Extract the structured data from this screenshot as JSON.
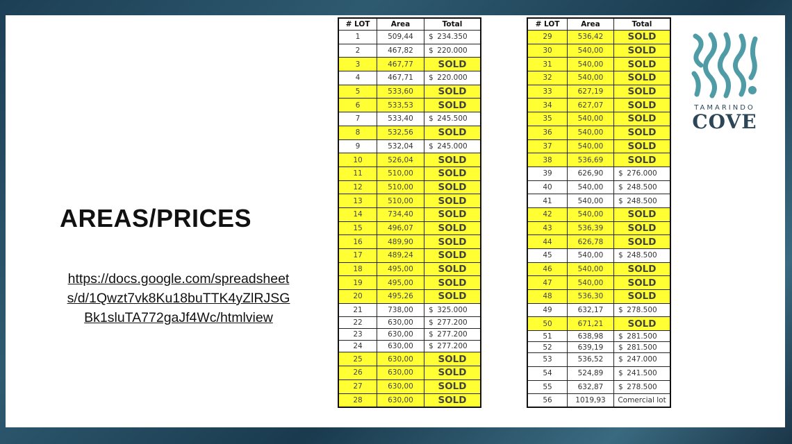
{
  "slide": {
    "title": "AREAS/PRICES",
    "link": "https://docs.google.com/spreadsheets/d/1Qwzt7vk8Ku18buTTK4yZlRJSGBk1sluTA772gaJf4Wc/htmlview"
  },
  "logo": {
    "line1": "TAMARINDO",
    "line2": "COVE",
    "color": "#4f9ca6"
  },
  "table": {
    "headers": [
      "# LOT",
      "Area",
      "Total"
    ],
    "sold_label": "SOLD",
    "currency": "$",
    "colors": {
      "sold_row": "#ffff33",
      "sold_text": "#d0380a"
    },
    "left_rows": [
      {
        "lot": "1",
        "area": "509,44",
        "total": "234.350"
      },
      {
        "lot": "2",
        "area": "467,82",
        "total": "220.000"
      },
      {
        "lot": "3",
        "area": "467,77",
        "sold": true
      },
      {
        "lot": "4",
        "area": "467,71",
        "total": "220.000"
      },
      {
        "lot": "5",
        "area": "533,60",
        "sold": true
      },
      {
        "lot": "6",
        "area": "533,53",
        "sold": true
      },
      {
        "lot": "7",
        "area": "533,40",
        "total": "245.500"
      },
      {
        "lot": "8",
        "area": "532,56",
        "sold": true
      },
      {
        "lot": "9",
        "area": "532,04",
        "total": "245.000"
      },
      {
        "lot": "10",
        "area": "526,04",
        "sold": true
      },
      {
        "lot": "11",
        "area": "510,00",
        "sold": true
      },
      {
        "lot": "12",
        "area": "510,00",
        "sold": true
      },
      {
        "lot": "13",
        "area": "510,00",
        "sold": true
      },
      {
        "lot": "14",
        "area": "734,40",
        "sold": true
      },
      {
        "lot": "15",
        "area": "496,07",
        "sold": true
      },
      {
        "lot": "16",
        "area": "489,90",
        "sold": true
      },
      {
        "lot": "17",
        "area": "489,24",
        "sold": true
      },
      {
        "lot": "18",
        "area": "495,00",
        "sold": true
      },
      {
        "lot": "19",
        "area": "495,00",
        "sold": true
      },
      {
        "lot": "20",
        "area": "495,26",
        "sold": true
      },
      {
        "lot": "21",
        "area": "738,00",
        "total": "325.000"
      },
      {
        "lot": "22",
        "area": "630,00",
        "total": "277.200"
      },
      {
        "lot": "23",
        "area": "630,00",
        "total": "277.200"
      },
      {
        "lot": "24",
        "area": "630,00",
        "total": "277.200"
      },
      {
        "lot": "25",
        "area": "630,00",
        "sold": true
      },
      {
        "lot": "26",
        "area": "630,00",
        "sold": true
      },
      {
        "lot": "27",
        "area": "630,00",
        "sold": true
      },
      {
        "lot": "28",
        "area": "630,00",
        "sold": true
      }
    ],
    "right_rows": [
      {
        "lot": "29",
        "area": "536,42",
        "sold": true
      },
      {
        "lot": "30",
        "area": "540,00",
        "sold": true
      },
      {
        "lot": "31",
        "area": "540,00",
        "sold": true
      },
      {
        "lot": "32",
        "area": "540,00",
        "sold": true
      },
      {
        "lot": "33",
        "area": "627,19",
        "sold": true
      },
      {
        "lot": "34",
        "area": "627,07",
        "sold": true
      },
      {
        "lot": "35",
        "area": "540,00",
        "sold": true
      },
      {
        "lot": "36",
        "area": "540,00",
        "sold": true
      },
      {
        "lot": "37",
        "area": "540,00",
        "sold": true
      },
      {
        "lot": "38",
        "area": "536,69",
        "sold": true
      },
      {
        "lot": "39",
        "area": "626,90",
        "total": "276.000"
      },
      {
        "lot": "40",
        "area": "540,00",
        "total": "248.500"
      },
      {
        "lot": "41",
        "area": "540,00",
        "total": "248.500"
      },
      {
        "lot": "42",
        "area": "540,00",
        "sold": true
      },
      {
        "lot": "43",
        "area": "536,39",
        "sold": true
      },
      {
        "lot": "44",
        "area": "626,78",
        "sold": true
      },
      {
        "lot": "45",
        "area": "540,00",
        "total": "248.500"
      },
      {
        "lot": "46",
        "area": "540,00",
        "sold": true
      },
      {
        "lot": "47",
        "area": "540,00",
        "sold": true
      },
      {
        "lot": "48",
        "area": "536,30",
        "sold": true
      },
      {
        "lot": "49",
        "area": "632,17",
        "total": "278.500"
      },
      {
        "lot": "50",
        "area": "671,21",
        "sold": true
      },
      {
        "lot": "51",
        "area": "638,98",
        "total": "281.500"
      },
      {
        "lot": "52",
        "area": "639,19",
        "total": "281.500"
      },
      {
        "lot": "53",
        "area": "536,52",
        "total": "247.000"
      },
      {
        "lot": "54",
        "area": "524,89",
        "total": "241.500"
      },
      {
        "lot": "55",
        "area": "632,87",
        "total": "278.500"
      },
      {
        "lot": "56",
        "area": "1019,93",
        "note": "Comercial lot"
      }
    ]
  }
}
